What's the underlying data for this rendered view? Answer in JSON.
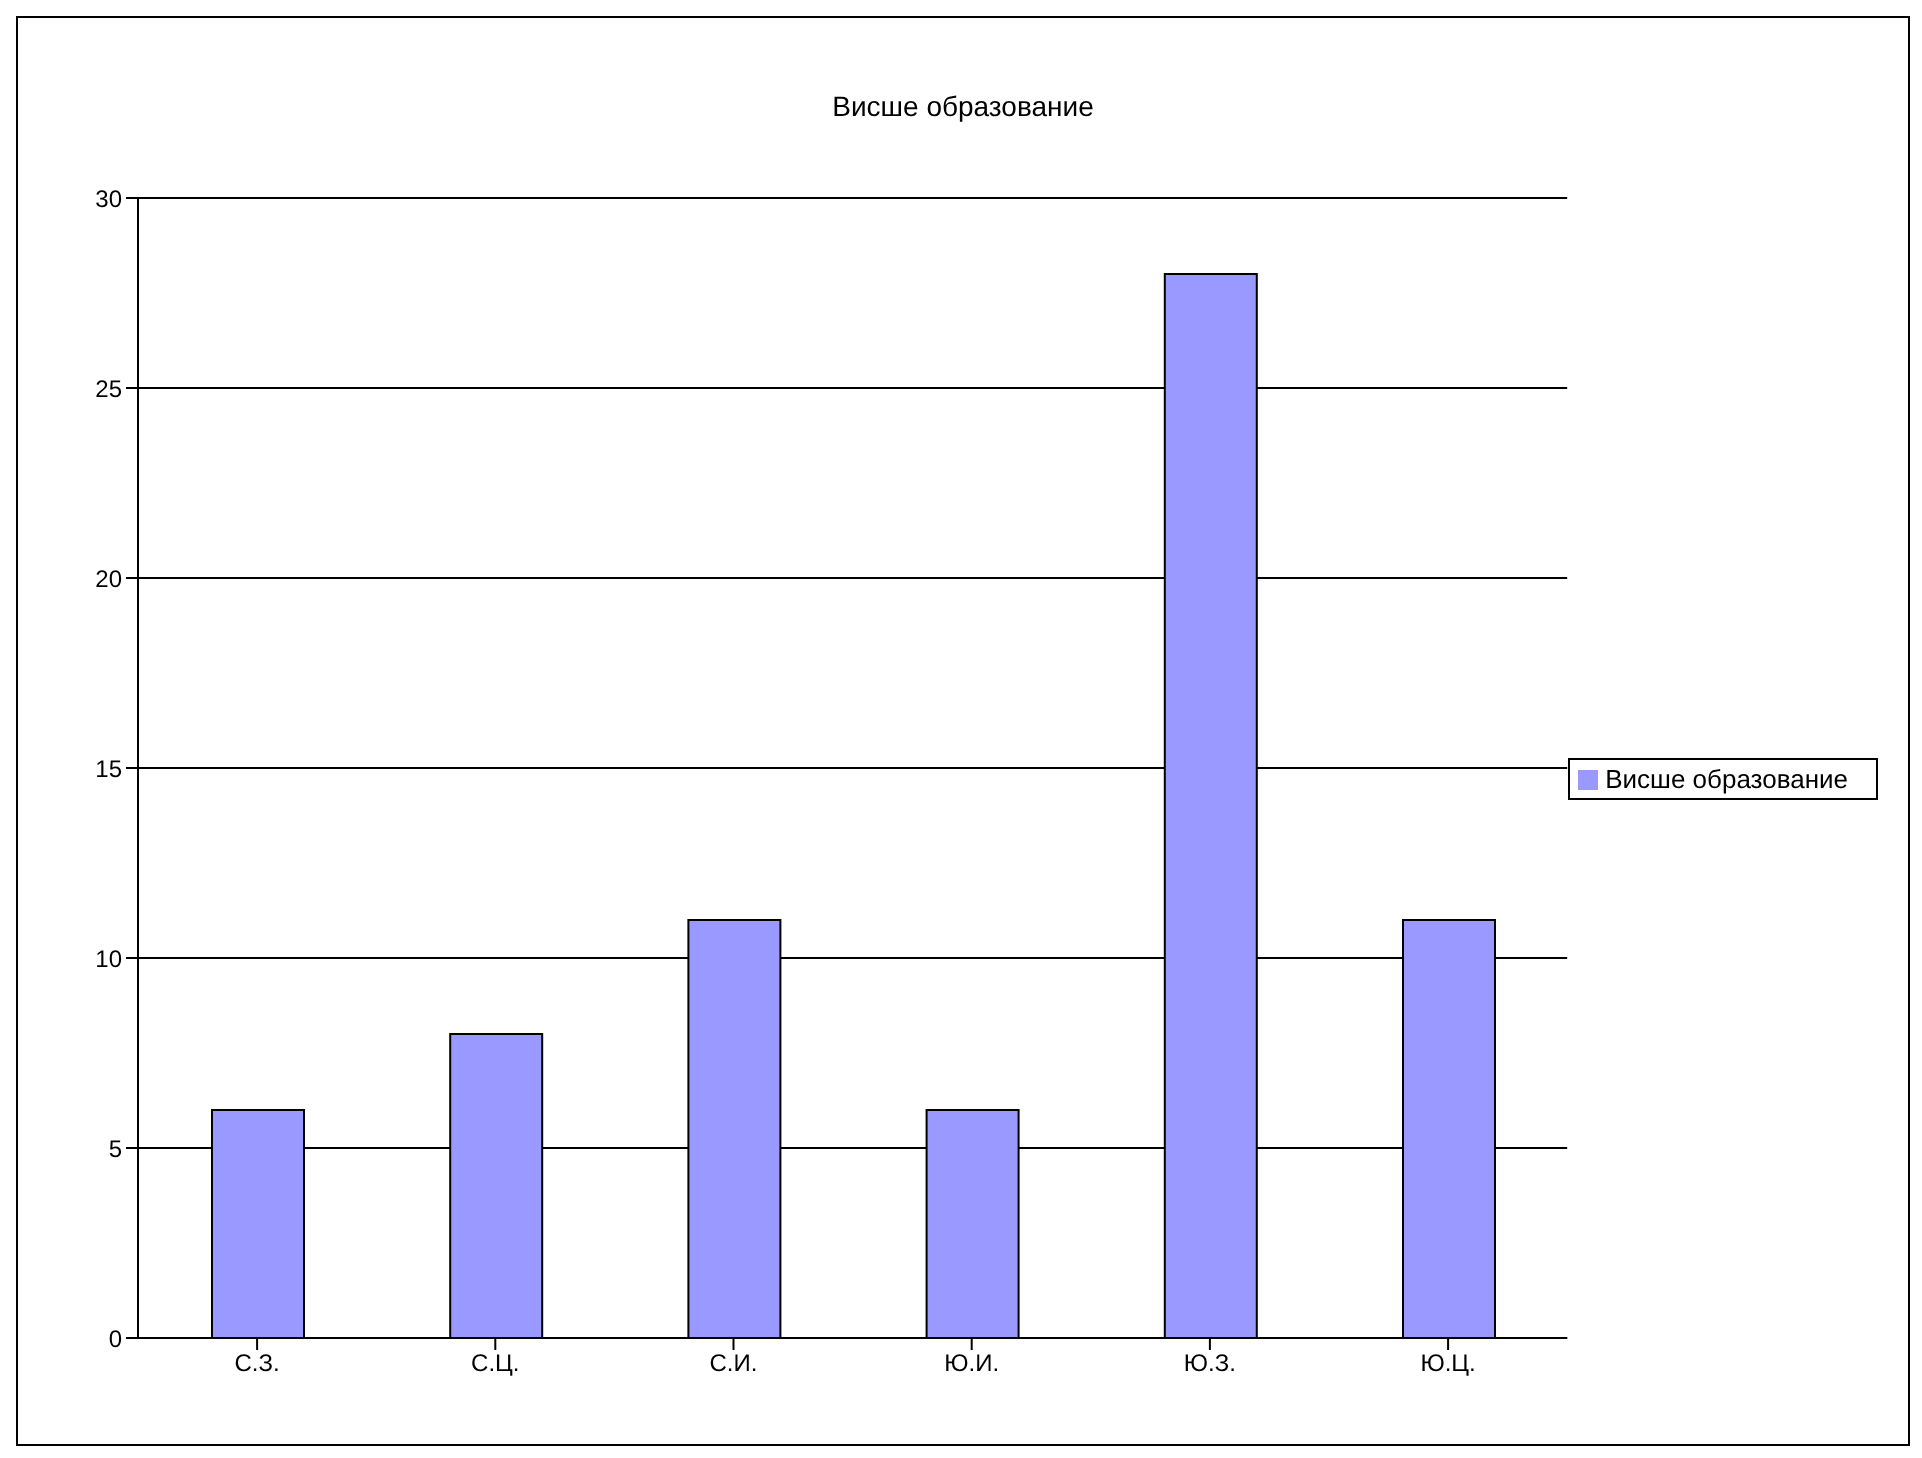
{
  "chart_data": {
    "type": "bar",
    "title": "Висше образование",
    "categories": [
      "С.З.",
      "С.Ц.",
      "С.И.",
      "Ю.И.",
      "Ю.З.",
      "Ю.Ц."
    ],
    "series": [
      {
        "name": "Висше образование",
        "color": "#9999ff",
        "values": [
          6,
          8,
          11,
          6,
          28,
          11
        ]
      }
    ],
    "ylim": [
      0,
      30
    ],
    "yticks": [
      0,
      5,
      10,
      15,
      20,
      25,
      30
    ],
    "grid": "y",
    "legend": "right"
  }
}
